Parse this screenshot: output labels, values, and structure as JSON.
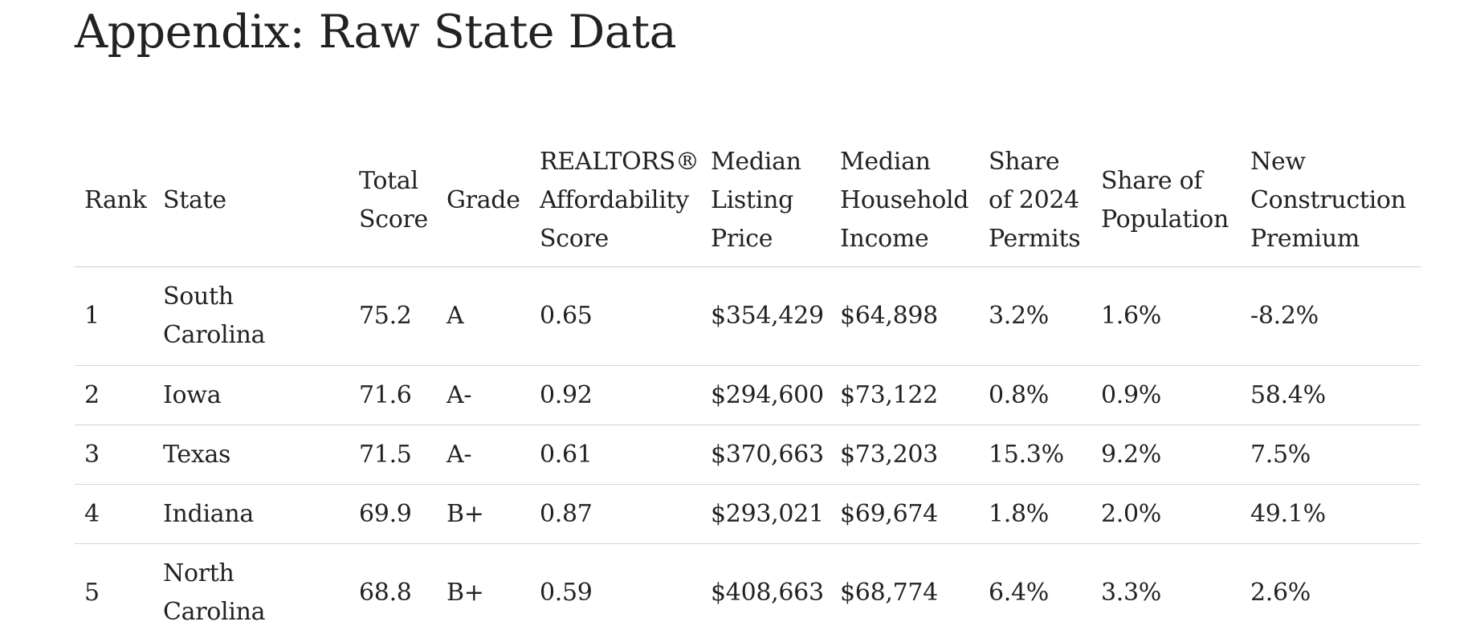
{
  "page_title": "Appendix: Raw State Data",
  "table": {
    "headers": {
      "rank": "Rank",
      "state": "State",
      "total_score": "Total Score",
      "grade": "Grade",
      "affordability": "REALTORS® Affordability Score",
      "median_listing_price": "Median Listing Price",
      "median_household_income": "Median Household Income",
      "share_permits": "Share of 2024 Permits",
      "share_population": "Share of Population",
      "new_construction_premium": "New Construction Premium"
    },
    "rows": [
      {
        "rank": "1",
        "state": "South Carolina",
        "total_score": "75.2",
        "grade": "A",
        "affordability": "0.65",
        "median_listing_price": "$354,429",
        "median_household_income": "$64,898",
        "share_permits": "3.2%",
        "share_population": "1.6%",
        "new_construction_premium": "-8.2%"
      },
      {
        "rank": "2",
        "state": "Iowa",
        "total_score": "71.6",
        "grade": "A-",
        "affordability": "0.92",
        "median_listing_price": "$294,600",
        "median_household_income": "$73,122",
        "share_permits": "0.8%",
        "share_population": "0.9%",
        "new_construction_premium": "58.4%"
      },
      {
        "rank": "3",
        "state": "Texas",
        "total_score": "71.5",
        "grade": "A-",
        "affordability": "0.61",
        "median_listing_price": "$370,663",
        "median_household_income": "$73,203",
        "share_permits": "15.3%",
        "share_population": "9.2%",
        "new_construction_premium": "7.5%"
      },
      {
        "rank": "4",
        "state": "Indiana",
        "total_score": "69.9",
        "grade": "B+",
        "affordability": "0.87",
        "median_listing_price": "$293,021",
        "median_household_income": "$69,674",
        "share_permits": "1.8%",
        "share_population": "2.0%",
        "new_construction_premium": "49.1%"
      },
      {
        "rank": "5",
        "state": "North Carolina",
        "total_score": "68.8",
        "grade": "B+",
        "affordability": "0.59",
        "median_listing_price": "$408,663",
        "median_household_income": "$68,774",
        "share_permits": "6.4%",
        "share_population": "3.3%",
        "new_construction_premium": "2.6%"
      }
    ]
  }
}
